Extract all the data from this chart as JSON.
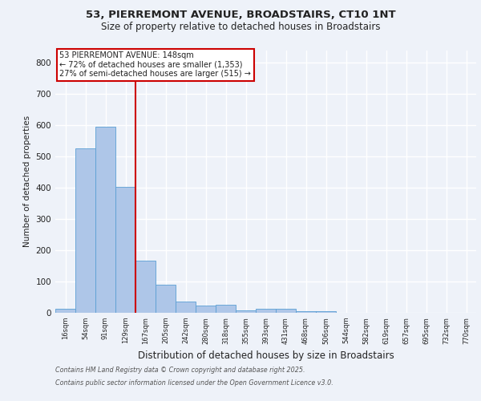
{
  "title_line1": "53, PIERREMONT AVENUE, BROADSTAIRS, CT10 1NT",
  "title_line2": "Size of property relative to detached houses in Broadstairs",
  "xlabel": "Distribution of detached houses by size in Broadstairs",
  "ylabel": "Number of detached properties",
  "categories": [
    "16sqm",
    "54sqm",
    "91sqm",
    "129sqm",
    "167sqm",
    "205sqm",
    "242sqm",
    "280sqm",
    "318sqm",
    "355sqm",
    "393sqm",
    "431sqm",
    "468sqm",
    "506sqm",
    "544sqm",
    "582sqm",
    "619sqm",
    "657sqm",
    "695sqm",
    "732sqm",
    "770sqm"
  ],
  "values": [
    14,
    527,
    594,
    403,
    168,
    90,
    35,
    22,
    25,
    8,
    14,
    14,
    5,
    5,
    0,
    0,
    0,
    0,
    0,
    0,
    0
  ],
  "bar_color": "#aec6e8",
  "bar_edge_color": "#5a9fd4",
  "property_line_x": 3.5,
  "annotation_text_line1": "53 PIERREMONT AVENUE: 148sqm",
  "annotation_text_line2": "← 72% of detached houses are smaller (1,353)",
  "annotation_text_line3": "27% of semi-detached houses are larger (515) →",
  "annotation_box_color": "#ffffff",
  "annotation_box_edge_color": "#cc0000",
  "vline_color": "#cc0000",
  "ylim": [
    0,
    840
  ],
  "yticks": [
    0,
    100,
    200,
    300,
    400,
    500,
    600,
    700,
    800
  ],
  "footer_line1": "Contains HM Land Registry data © Crown copyright and database right 2025.",
  "footer_line2": "Contains public sector information licensed under the Open Government Licence v3.0.",
  "background_color": "#eef2f9",
  "plot_bg_color": "#eef2f9",
  "grid_color": "#ffffff",
  "font_color": "#222222"
}
